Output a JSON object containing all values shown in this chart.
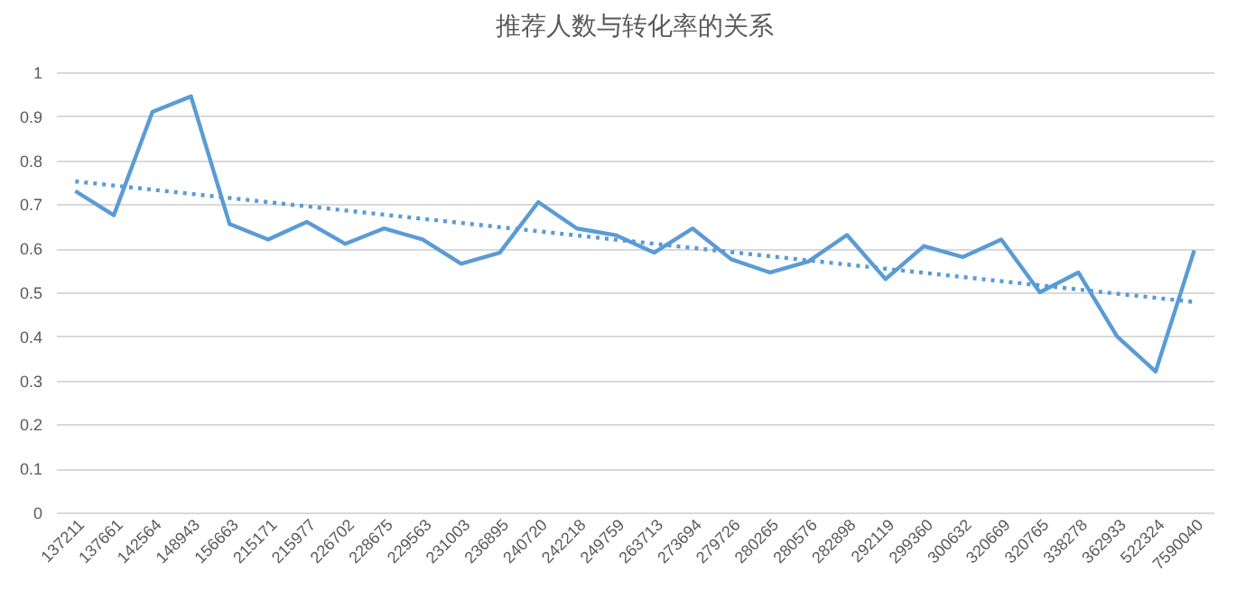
{
  "chart_data": {
    "type": "line",
    "title": "推荐人数与转化率的关系",
    "categories": [
      "137211",
      "137661",
      "142564",
      "148943",
      "156663",
      "215171",
      "215977",
      "226702",
      "228675",
      "229563",
      "231003",
      "236895",
      "240720",
      "242218",
      "249759",
      "263713",
      "273694",
      "279726",
      "280265",
      "280576",
      "282898",
      "292119",
      "299360",
      "300632",
      "320669",
      "320765",
      "338278",
      "362933",
      "522324",
      "7590040"
    ],
    "series": [
      {
        "color": "#5b9bd5",
        "line_style": "solid",
        "values": [
          0.73,
          0.675,
          0.91,
          0.945,
          0.655,
          0.62,
          0.66,
          0.61,
          0.645,
          0.62,
          0.565,
          0.59,
          0.705,
          0.645,
          0.63,
          0.59,
          0.645,
          0.575,
          0.545,
          0.57,
          0.63,
          0.53,
          0.605,
          0.58,
          0.62,
          0.5,
          0.545,
          0.4,
          0.32,
          0.595
        ]
      },
      {
        "type": "line",
        "color": "#5b9bd5",
        "line_style": "dotted",
        "x": [
          "137211",
          "7590040"
        ],
        "values": [
          0.752,
          0.478
        ]
      }
    ],
    "ylim": [
      0,
      1
    ],
    "yticks": [
      0,
      0.1,
      0.2,
      0.3,
      0.4,
      0.5,
      0.6,
      0.7,
      0.8,
      0.9,
      1
    ],
    "grid": "y",
    "marker": "none"
  }
}
